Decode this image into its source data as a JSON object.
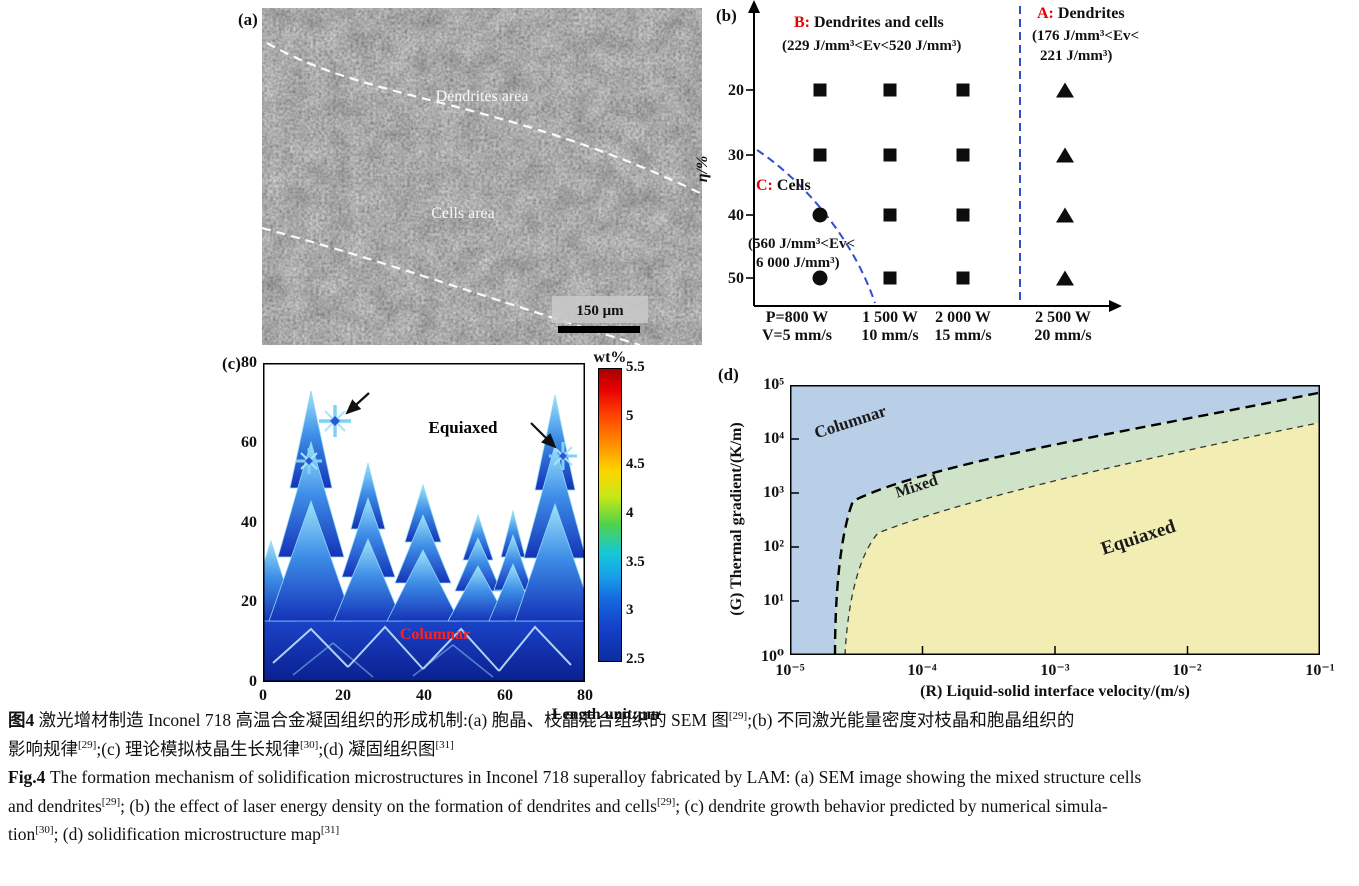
{
  "colors": {
    "accent_red": "#e60000",
    "dashed_blue": "#3050c8",
    "columnar_fill": "#b9cfe8",
    "mixed_fill": "#cfe3c8",
    "equiaxed_fill": "#f2edb3",
    "sem_gray": "#8f8f8f",
    "dendrite_blue": "#1f49cf",
    "columnar_text_red": "#ff2020"
  },
  "panels": {
    "a": {
      "tag": "(a)",
      "dendrites_label": "Dendrites area",
      "cells_label": "Cells area",
      "scale_bar": "150 μm"
    },
    "b": {
      "tag": "(b)"
    },
    "c": {
      "tag": "(c)"
    },
    "d": {
      "tag": "(d)"
    }
  },
  "chart_data": [
    {
      "panel": "b",
      "type": "scatter",
      "y_axis_label": "η/%",
      "y_ticks": [
        "20",
        "30",
        "40",
        "50"
      ],
      "x_ticks": [
        {
          "line1": "P=800 W",
          "line2": "V=5 mm/s"
        },
        {
          "line1": "1 500 W",
          "line2": "10 mm/s"
        },
        {
          "line1": "2 000 W",
          "line2": "15 mm/s"
        },
        {
          "line1": "2 500 W",
          "line2": "20 mm/s"
        }
      ],
      "regions": [
        {
          "id": "A",
          "label": "A:",
          "name": " Dendrites",
          "range": [
            "(176 J/mm³<Ev<",
            "221 J/mm³)"
          ],
          "marker": "triangle"
        },
        {
          "id": "B",
          "label": "B:",
          "name": " Dendrites and cells",
          "range": [
            "(229 J/mm³<Ev<520 J/mm³)"
          ],
          "marker": "square"
        },
        {
          "id": "C",
          "label": "C:",
          "name": " Cells",
          "range": [
            "(560 J/mm³<Ev<",
            "6 000 J/mm³)"
          ],
          "marker": "circle"
        }
      ],
      "points": [
        {
          "col": 1,
          "eta": 20,
          "marker": "square"
        },
        {
          "col": 2,
          "eta": 20,
          "marker": "square"
        },
        {
          "col": 3,
          "eta": 20,
          "marker": "square"
        },
        {
          "col": 4,
          "eta": 20,
          "marker": "triangle"
        },
        {
          "col": 1,
          "eta": 30,
          "marker": "square"
        },
        {
          "col": 2,
          "eta": 30,
          "marker": "square"
        },
        {
          "col": 3,
          "eta": 30,
          "marker": "square"
        },
        {
          "col": 4,
          "eta": 30,
          "marker": "triangle"
        },
        {
          "col": 1,
          "eta": 40,
          "marker": "circle"
        },
        {
          "col": 2,
          "eta": 40,
          "marker": "square"
        },
        {
          "col": 3,
          "eta": 40,
          "marker": "square"
        },
        {
          "col": 4,
          "eta": 40,
          "marker": "triangle"
        },
        {
          "col": 1,
          "eta": 50,
          "marker": "circle"
        },
        {
          "col": 2,
          "eta": 50,
          "marker": "square"
        },
        {
          "col": 3,
          "eta": 50,
          "marker": "square"
        },
        {
          "col": 4,
          "eta": 50,
          "marker": "triangle"
        }
      ]
    },
    {
      "panel": "c",
      "type": "heatmap",
      "colorbar_title": "wt%",
      "colorbar_ticks": [
        "5.5",
        "5",
        "4.5",
        "4",
        "3.5",
        "3",
        "2.5"
      ],
      "colorbar_range": [
        2.5,
        5.5
      ],
      "x_ticks": [
        "0",
        "20",
        "40",
        "60",
        "80"
      ],
      "y_ticks": [
        "80",
        "60",
        "40",
        "20",
        "0"
      ],
      "axis_unit": "Length unit:μm",
      "annotations": [
        {
          "text": "Equiaxed",
          "color": "#000000"
        },
        {
          "text": "Columnar",
          "color": "#ff2020"
        }
      ]
    },
    {
      "panel": "d",
      "type": "region-map",
      "x_axis_label": "(R) Liquid-solid interface velocity/(m/s)",
      "y_axis_label": "(G) Thermal gradient/(K/m)",
      "x_ticks": [
        "10⁻⁵",
        "10⁻⁴",
        "10⁻³",
        "10⁻²",
        "10⁻¹"
      ],
      "y_ticks": [
        "10⁵",
        "10⁴",
        "10³",
        "10²",
        "10¹",
        "10⁰"
      ],
      "x_range_exp": [
        -5,
        -1
      ],
      "y_range_exp": [
        0,
        5
      ],
      "regions": [
        {
          "text": "Columnar"
        },
        {
          "text": "Mixed"
        },
        {
          "text": "Equiaxed"
        }
      ]
    }
  ],
  "caption": {
    "lines": [
      [
        {
          "t": "图4  ",
          "b": true
        },
        {
          "t": "激光增材制造 Inconel 718 高温合金凝固组织的形成机制:(a) 胞晶、枝晶混合组织的 SEM 图"
        },
        {
          "t": "[29]",
          "sup": true
        },
        {
          "t": ";(b) 不同激光能量密度对枝晶和胞晶组织的"
        }
      ],
      [
        {
          "t": "影响规律"
        },
        {
          "t": "[29]",
          "sup": true
        },
        {
          "t": ";(c) 理论模拟枝晶生长规律"
        },
        {
          "t": "[30]",
          "sup": true
        },
        {
          "t": ";(d) 凝固组织图"
        },
        {
          "t": "[31]",
          "sup": true
        }
      ],
      [
        {
          "t": "Fig.4  ",
          "b": true
        },
        {
          "t": "The formation mechanism of solidification microstructures in Inconel 718 superalloy fabricated by LAM: (a) SEM image showing the mixed structure cells"
        }
      ],
      [
        {
          "t": "and dendrites"
        },
        {
          "t": "[29]",
          "sup": true
        },
        {
          "t": "; (b) the effect of laser energy density on the formation of dendrites and cells"
        },
        {
          "t": "[29]",
          "sup": true
        },
        {
          "t": "; (c) dendrite growth behavior predicted by numerical simula-"
        }
      ],
      [
        {
          "t": "tion"
        },
        {
          "t": "[30]",
          "sup": true
        },
        {
          "t": "; (d) solidification microstructure map"
        },
        {
          "t": "[31]",
          "sup": true
        }
      ]
    ]
  }
}
